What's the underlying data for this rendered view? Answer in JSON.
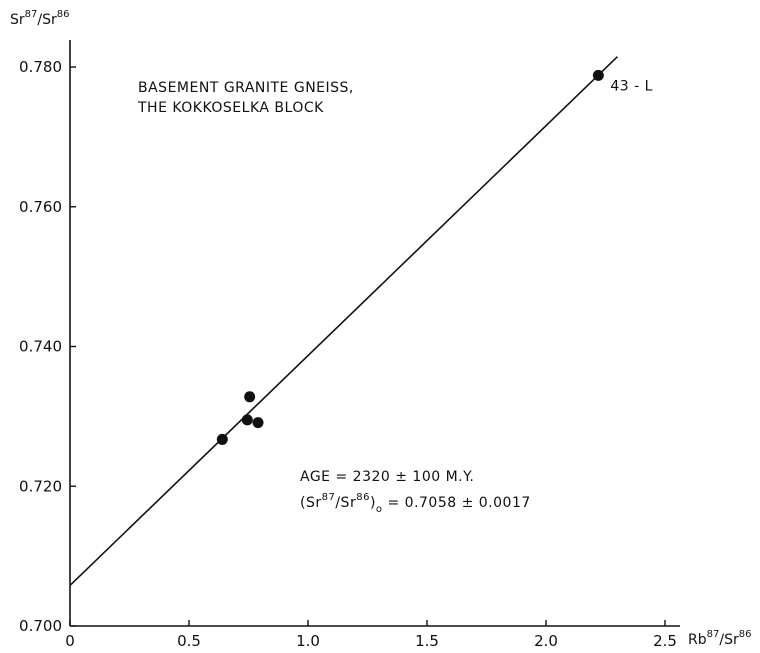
{
  "chart_data": {
    "type": "scatter",
    "title": "",
    "ylabel": {
      "prefix": "Sr",
      "sup1": "87",
      "mid": "/Sr",
      "sup2": "86"
    },
    "xlabel": {
      "prefix": "Rb",
      "sup1": "87",
      "mid": "/Sr",
      "sup2": "86"
    },
    "xlim": [
      0,
      2.5
    ],
    "ylim": [
      0.7,
      0.78
    ],
    "x_ticks": [
      0,
      0.5,
      1.0,
      1.5,
      2.0,
      2.5
    ],
    "x_tick_labels": [
      "0",
      "0.5",
      "1.0",
      "1.5",
      "2.0",
      "2.5"
    ],
    "y_ticks": [
      0.7,
      0.72,
      0.74,
      0.76,
      0.78
    ],
    "y_tick_labels": [
      "0.700",
      "0.720",
      "0.740",
      "0.760",
      "0.780"
    ],
    "grid": false,
    "points": [
      {
        "x": 0.64,
        "y": 0.7267,
        "label": ""
      },
      {
        "x": 0.745,
        "y": 0.7295,
        "label": ""
      },
      {
        "x": 0.755,
        "y": 0.7328,
        "label": ""
      },
      {
        "x": 0.79,
        "y": 0.7291,
        "label": ""
      },
      {
        "x": 2.22,
        "y": 0.7788,
        "label": "43 - L"
      }
    ],
    "regression_line": {
      "intercept": 0.7058,
      "slope": 0.0329,
      "x_range": [
        0,
        2.3
      ]
    },
    "annotations": {
      "title_line1": "BASEMENT GRANITE GNEISS,",
      "title_line2": "THE KOKKOSELKA BLOCK",
      "age": "AGE = 2320 ± 100 M.Y.",
      "ratio_prefix": "(Sr",
      "ratio_sup1": "87",
      "ratio_mid": "/Sr",
      "ratio_sup2": "86",
      "ratio_close": ")",
      "ratio_sub": "o",
      "ratio_value": " = 0.7058 ± 0.0017"
    }
  }
}
